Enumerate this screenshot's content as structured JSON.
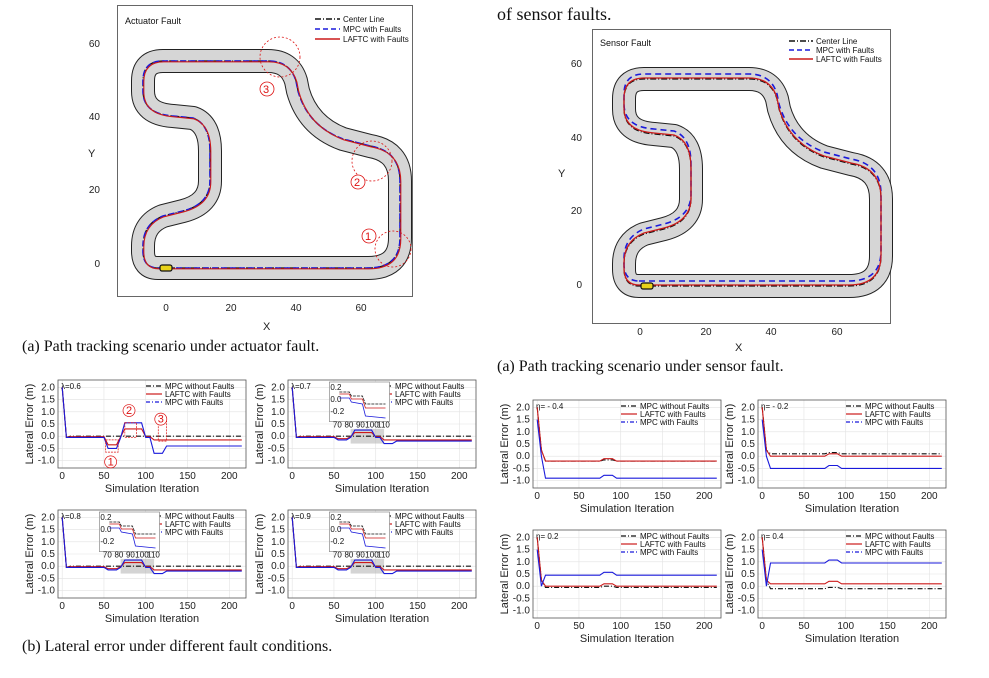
{
  "top_text": "of sensor faults.",
  "track_left": {
    "title": "Actuator Fault",
    "legend": [
      "Center Line",
      "MPC with Faults",
      "LAFTC with Faults"
    ],
    "x_ticks": [
      "0",
      "20",
      "40",
      "60"
    ],
    "y_ticks": [
      "0",
      "20",
      "40",
      "60"
    ],
    "xlabel": "X",
    "ylabel": "Y",
    "markers": [
      "1",
      "2",
      "3"
    ],
    "caption": "(a) Path tracking scenario under actuator fault."
  },
  "track_right": {
    "title": "Sensor Fault",
    "legend": [
      "Center Line",
      "MPC with Faults",
      "LAFTC with Faults"
    ],
    "x_ticks": [
      "0",
      "20",
      "40",
      "60"
    ],
    "y_ticks": [
      "0",
      "20",
      "40",
      "60"
    ],
    "xlabel": "X",
    "ylabel": "Y",
    "caption": "(a) Path tracking scenario under sensor fault."
  },
  "error_left": {
    "caption": "(b) Lateral error under different fault conditions.",
    "panels": [
      {
        "label": "λ=0.6",
        "markers": [
          "1",
          "2",
          "3"
        ],
        "inset": false
      },
      {
        "label": "λ=0.7",
        "inset": true
      },
      {
        "label": "λ=0.8",
        "inset": true
      },
      {
        "label": "λ=0.9",
        "inset": true
      }
    ],
    "legend": [
      "MPC without Faults",
      "LAFTC with Faults",
      "MPC with Faults"
    ],
    "y_ticks": [
      "2.0",
      "1.5",
      "1.0",
      "0.5",
      "0.0",
      "-0.5",
      "-1.0"
    ],
    "x_ticks": [
      "0",
      "50",
      "100",
      "150",
      "200"
    ],
    "xlabel": "Simulation Iteration",
    "ylabel": "Lateral Error (m)",
    "inset_x_ticks": [
      "70",
      "80",
      "90",
      "100",
      "110"
    ],
    "inset_y_ticks": [
      "0.2",
      "0.0",
      "-0.2"
    ]
  },
  "error_right": {
    "panels": [
      {
        "label": "η= - 0.4"
      },
      {
        "label": "η= - 0.2"
      },
      {
        "label": "η= 0.2"
      },
      {
        "label": "η= 0.4"
      }
    ],
    "legend": [
      "MPC without Faults",
      "LAFTC with Faults",
      "MPC with Faults"
    ],
    "y_ticks": [
      "2.0",
      "1.5",
      "1.0",
      "0.5",
      "0.0",
      "-0.5",
      "-1.0"
    ],
    "x_ticks": [
      "0",
      "50",
      "100",
      "150",
      "200"
    ],
    "xlabel": "Simulation Iteration",
    "ylabel": "Lateral Error (m)"
  },
  "colors": {
    "center": "#111111",
    "mpc": "#1a1adb",
    "laftc": "#cc1a1a",
    "road": "#d6d6d6",
    "shade": "#b8b8b8"
  }
}
